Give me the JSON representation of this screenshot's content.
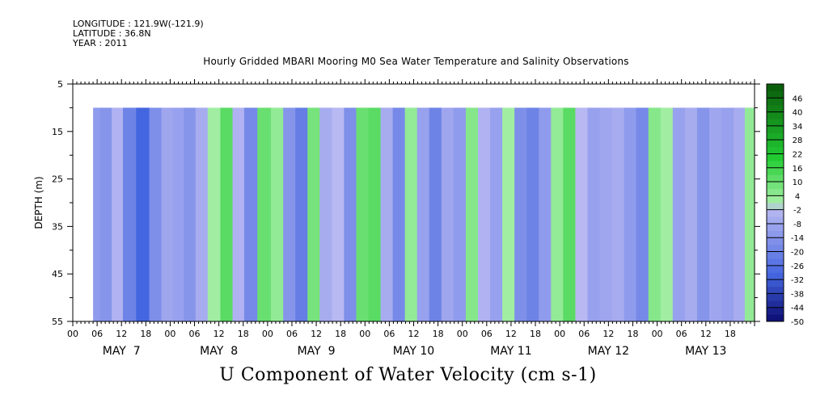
{
  "meta": {
    "longitude": "LONGITUDE : 121.9W(-121.9)",
    "latitude": "LATITUDE : 36.8N",
    "year": "YEAR : 2011"
  },
  "chart_data": {
    "type": "heatmap",
    "title": "Hourly Gridded MBARI Mooring M0 Sea Water Temperature and Salinity Observations",
    "xlabel": "U Component of Water Velocity (cm s-1)",
    "ylabel": "DEPTH (m)",
    "ylim": [
      55,
      5
    ],
    "y_ticks": [
      5,
      15,
      25,
      35,
      45,
      55
    ],
    "data_depth_range": [
      10,
      55
    ],
    "x_hour_ticks": [
      "00",
      "06",
      "12",
      "18",
      "00",
      "06",
      "12",
      "18",
      "00",
      "06",
      "12",
      "18",
      "00",
      "06",
      "12",
      "18",
      "00",
      "06",
      "12",
      "18",
      "00",
      "06",
      "12",
      "18",
      "00",
      "06",
      "12",
      "18"
    ],
    "x_date_labels": [
      "MAY  7",
      "MAY  8",
      "MAY  9",
      "MAY 10",
      "MAY 11",
      "MAY 12",
      "MAY 13"
    ],
    "x_range_days": [
      "2011-05-07T00:00",
      "2011-05-14T00:00"
    ],
    "data_start": "2011-05-07T05:00",
    "colorbar": {
      "labels": [
        "46",
        "40",
        "34",
        "28",
        "22",
        "16",
        "10",
        "4",
        "-2",
        "-8",
        "-14",
        "-20",
        "-26",
        "-32",
        "-38",
        "-44",
        "-50"
      ],
      "min": -50,
      "max": 52,
      "step": 3
    },
    "colors": {
      "positive_dark": "#0a5a0a",
      "positive_mid": "#22cc33",
      "positive_light": "#a8f0a8",
      "negative_light": "#b8b8f2",
      "negative_mid": "#4466e0",
      "negative_dark": "#0b0b70"
    },
    "bands": [
      {
        "day": 7.21,
        "value": -12
      },
      {
        "day": 7.35,
        "value": -14
      },
      {
        "day": 7.45,
        "value": -4
      },
      {
        "day": 7.58,
        "value": -20
      },
      {
        "day": 7.72,
        "value": -30
      },
      {
        "day": 7.85,
        "value": -16
      },
      {
        "day": 7.97,
        "value": -8
      },
      {
        "day": 8.08,
        "value": -10
      },
      {
        "day": 8.2,
        "value": -14
      },
      {
        "day": 8.32,
        "value": -6
      },
      {
        "day": 8.45,
        "value": 2
      },
      {
        "day": 8.58,
        "value": 12
      },
      {
        "day": 8.7,
        "value": -4
      },
      {
        "day": 8.82,
        "value": -18
      },
      {
        "day": 8.97,
        "value": 10
      },
      {
        "day": 9.1,
        "value": 4
      },
      {
        "day": 9.22,
        "value": -14
      },
      {
        "day": 9.35,
        "value": -22
      },
      {
        "day": 9.47,
        "value": 8
      },
      {
        "day": 9.6,
        "value": -6
      },
      {
        "day": 9.72,
        "value": -2
      },
      {
        "day": 9.85,
        "value": -16
      },
      {
        "day": 9.97,
        "value": 10
      },
      {
        "day": 10.1,
        "value": 12
      },
      {
        "day": 10.22,
        "value": -6
      },
      {
        "day": 10.35,
        "value": -18
      },
      {
        "day": 10.47,
        "value": 4
      },
      {
        "day": 10.6,
        "value": -10
      },
      {
        "day": 10.72,
        "value": -20
      },
      {
        "day": 10.85,
        "value": -8
      },
      {
        "day": 10.97,
        "value": -12
      },
      {
        "day": 11.1,
        "value": 6
      },
      {
        "day": 11.22,
        "value": -4
      },
      {
        "day": 11.35,
        "value": -10
      },
      {
        "day": 11.47,
        "value": 2
      },
      {
        "day": 11.6,
        "value": -16
      },
      {
        "day": 11.72,
        "value": -20
      },
      {
        "day": 11.85,
        "value": -12
      },
      {
        "day": 11.97,
        "value": 4
      },
      {
        "day": 12.1,
        "value": 12
      },
      {
        "day": 12.22,
        "value": -2
      },
      {
        "day": 12.35,
        "value": -10
      },
      {
        "day": 12.47,
        "value": -8
      },
      {
        "day": 12.6,
        "value": -6
      },
      {
        "day": 12.72,
        "value": -12
      },
      {
        "day": 12.85,
        "value": -18
      },
      {
        "day": 12.97,
        "value": 6
      },
      {
        "day": 13.1,
        "value": 2
      },
      {
        "day": 13.22,
        "value": -10
      },
      {
        "day": 13.35,
        "value": -6
      },
      {
        "day": 13.47,
        "value": -14
      },
      {
        "day": 13.6,
        "value": -8
      },
      {
        "day": 13.72,
        "value": -10
      },
      {
        "day": 13.85,
        "value": -6
      },
      {
        "day": 13.95,
        "value": 4
      }
    ]
  }
}
